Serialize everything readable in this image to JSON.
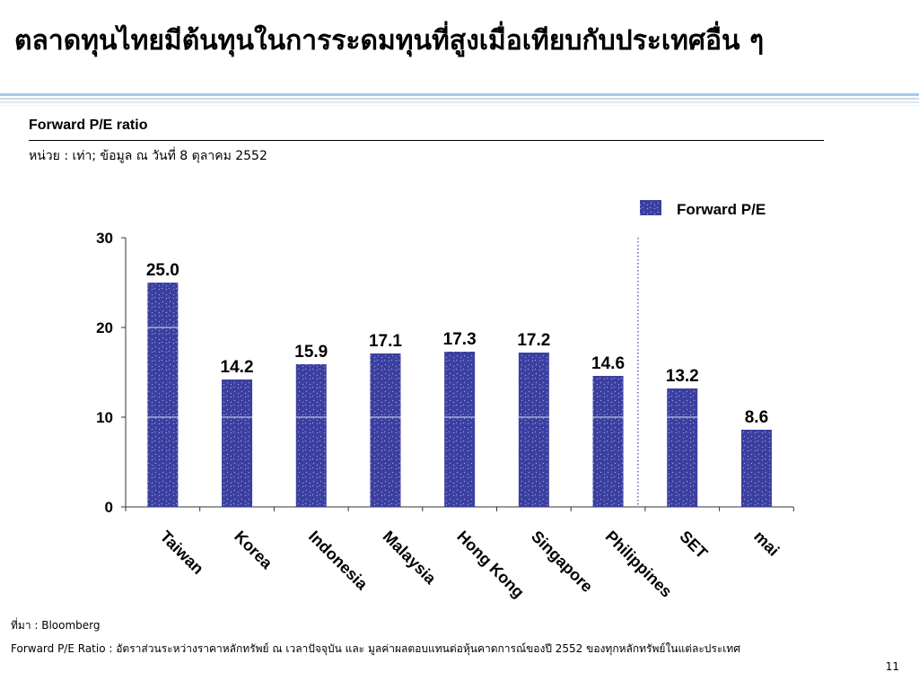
{
  "slide": {
    "title": "ตลาดทุนไทยมีต้นทุนในการระดมทุนที่สูงเมื่อเทียบกับประเทศอื่น ๆ",
    "section_title": "Forward P/E ratio",
    "unit_note": "หน่วย : เท่า; ข้อมูล ณ วันที่ 8 ตุลาคม 2552",
    "source_note": "ที่มา : Bloomberg",
    "definition_note": "Forward P/E Ratio  : อัตราส่วนระหว่างราคาหลักทรัพย์ ณ เวลาปัจจุบัน และ มูลค่าผลตอบแทนต่อหุ้นคาดการณ์ของปี 2552 ของทุกหลักทรัพย์ในแต่ละประเทศ",
    "page_number": "11"
  },
  "colors": {
    "bar_fill": "#3b3fa0",
    "bar_pattern": "#b9bde8",
    "title_rule": "#a9c7e3",
    "separator": "#2a4aa0"
  },
  "chart_data": {
    "type": "bar",
    "title": "",
    "xlabel": "",
    "ylabel": "",
    "categories": [
      "Taiwan",
      "Korea",
      "Indonesia",
      "Malaysia",
      "Hong Kong",
      "Singapore",
      "Philippines",
      "SET",
      "mai"
    ],
    "series": [
      {
        "name": "Forward P/E",
        "values": [
          25.0,
          14.2,
          15.9,
          17.1,
          17.3,
          17.2,
          14.6,
          13.2,
          8.6
        ]
      }
    ],
    "data_labels": [
      "25.0",
      "14.2",
      "15.9",
      "17.1",
      "17.3",
      "17.2",
      "14.6",
      "13.2",
      "8.6"
    ],
    "ylim": [
      0,
      30
    ],
    "yticks": [
      0,
      10,
      20,
      30
    ],
    "grid": false,
    "legend": "top-right",
    "separator_after_category": "Philippines"
  }
}
